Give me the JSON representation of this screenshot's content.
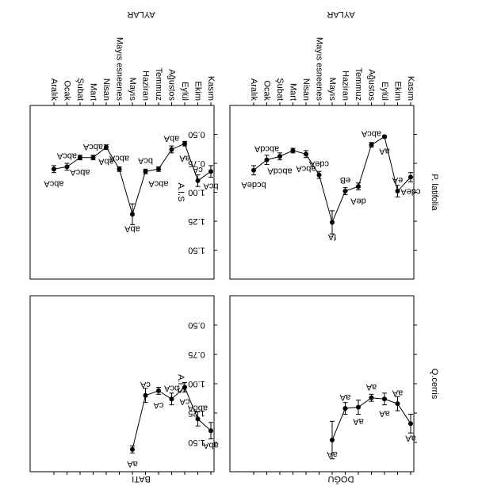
{
  "strips": {
    "columns": [
      "BATI",
      "DOĞU"
    ],
    "rows": [
      "P. latifolia",
      "Q.cerris"
    ]
  },
  "chart_data": [
    {
      "type": "line",
      "x_label": "AYLAR",
      "y_label": "A.I.S",
      "color": "#000000",
      "categories": [
        "Aralık",
        "Ocak",
        "Şubat",
        "Mart",
        "Nisan",
        "Mayıs esneenes",
        "Mayıs",
        "Haziran",
        "Temmuz",
        "Ağustos",
        "Eylül",
        "Ekim",
        "Kasım"
      ],
      "values": [
        0.8,
        0.78,
        0.7,
        0.7,
        0.61,
        0.8,
        1.19,
        0.82,
        0.8,
        0.63,
        0.58,
        0.9,
        0.82
      ],
      "errors": [
        0.03,
        0.03,
        0.02,
        0.02,
        0.02,
        0.02,
        0.09,
        0.02,
        0.02,
        0.03,
        0.02,
        0.05,
        0.05
      ],
      "letters": [
        "abcA",
        "abcA",
        "abcA",
        "abcA",
        "abA",
        "abcA",
        "abA",
        "bcA",
        "abcA",
        "abA",
        "aA",
        "cA",
        "bcA"
      ],
      "ylim": [
        0.25,
        1.75
      ],
      "yticks": [
        {
          "value": 0.5,
          "label": "0.50"
        },
        0.75,
        {
          "value": 1.0,
          "label": "1.00"
        },
        1.25,
        {
          "value": 1.5,
          "label": "1.50"
        }
      ]
    },
    {
      "type": "line",
      "x_label": "AYLAR",
      "color": "#000000",
      "categories": [
        "Aralık",
        "Ocak",
        "Şubat",
        "Mart",
        "Nisan",
        "Mayıs esneenes",
        "Mayıs",
        "Haziran",
        "Temmuz",
        "Ağustos",
        "Eylül",
        "Ekim",
        "Kasım"
      ],
      "values": [
        0.81,
        0.72,
        0.69,
        0.64,
        0.67,
        0.85,
        1.26,
        0.99,
        0.95,
        0.59,
        0.52,
        0.99,
        0.87
      ],
      "errors": [
        0.04,
        0.04,
        0.03,
        0.02,
        0.03,
        0.03,
        0.1,
        0.03,
        0.03,
        0.02,
        0.01,
        0.05,
        0.04
      ],
      "letters": [
        "bcdeA",
        "abcdA",
        "abcdA",
        null,
        "abcA",
        "cdeA",
        "fA",
        "eB",
        "deA",
        "abcA",
        "aA",
        "eA",
        "cdeA"
      ],
      "ylim": [
        0.25,
        1.75
      ],
      "yticks": [
        {
          "value": 0.5,
          "label": "0.50"
        },
        0.75,
        {
          "value": 1.0,
          "label": "1.00"
        },
        1.25,
        {
          "value": 1.5,
          "label": "1.50"
        }
      ]
    },
    {
      "type": "line",
      "y_label": "A.I.S",
      "color": "#000000",
      "categories": [
        "Aralık",
        "Ocak",
        "Şubat",
        "Mart",
        "Nisan",
        "Mayıs esneenes",
        "Mayıs",
        "Haziran",
        "Temmuz",
        "Ağustos",
        "Eylül",
        "Ekim",
        "Kasım"
      ],
      "values": [
        null,
        null,
        null,
        null,
        null,
        null,
        1.56,
        1.1,
        1.06,
        1.13,
        1.03,
        1.3,
        1.4
      ],
      "errors": [
        null,
        null,
        null,
        null,
        null,
        null,
        0.03,
        0.06,
        0.03,
        0.05,
        0.04,
        0.06,
        0.07
      ],
      "letters": [
        null,
        null,
        null,
        null,
        null,
        null,
        "aA",
        "cA",
        "cA",
        "bcA",
        "cA",
        "abcA",
        "abA"
      ],
      "ylim": [
        0.25,
        1.75
      ],
      "yticks": [
        {
          "value": 0.5,
          "label": "0.50"
        },
        0.75,
        {
          "value": 1.0,
          "label": "1.00"
        },
        1.25,
        {
          "value": 1.5,
          "label": "1.50"
        }
      ]
    },
    {
      "type": "line",
      "color": "#000000",
      "categories": [
        "Aralık",
        "Ocak",
        "Şubat",
        "Mart",
        "Nisan",
        "Mayıs esneenes",
        "Mayıs",
        "Haziran",
        "Temmuz",
        "Ağustos",
        "Eylül",
        "Ekim",
        "Kasım"
      ],
      "values": [
        null,
        null,
        null,
        null,
        null,
        null,
        1.48,
        1.21,
        1.2,
        1.12,
        1.13,
        1.17,
        1.34
      ],
      "errors": [
        null,
        null,
        null,
        null,
        null,
        null,
        0.16,
        0.05,
        0.06,
        0.03,
        0.05,
        0.06,
        0.08
      ],
      "letters": [
        null,
        null,
        null,
        null,
        null,
        null,
        "aA",
        "aA",
        "aA",
        "aA",
        "aA",
        "aA",
        "aA"
      ],
      "ylim": [
        0.25,
        1.75
      ],
      "yticks": [
        {
          "value": 0.5,
          "label": "0.50"
        },
        0.75,
        {
          "value": 1.0,
          "label": "1.00"
        },
        1.25,
        {
          "value": 1.5,
          "label": "1.50"
        }
      ]
    }
  ]
}
